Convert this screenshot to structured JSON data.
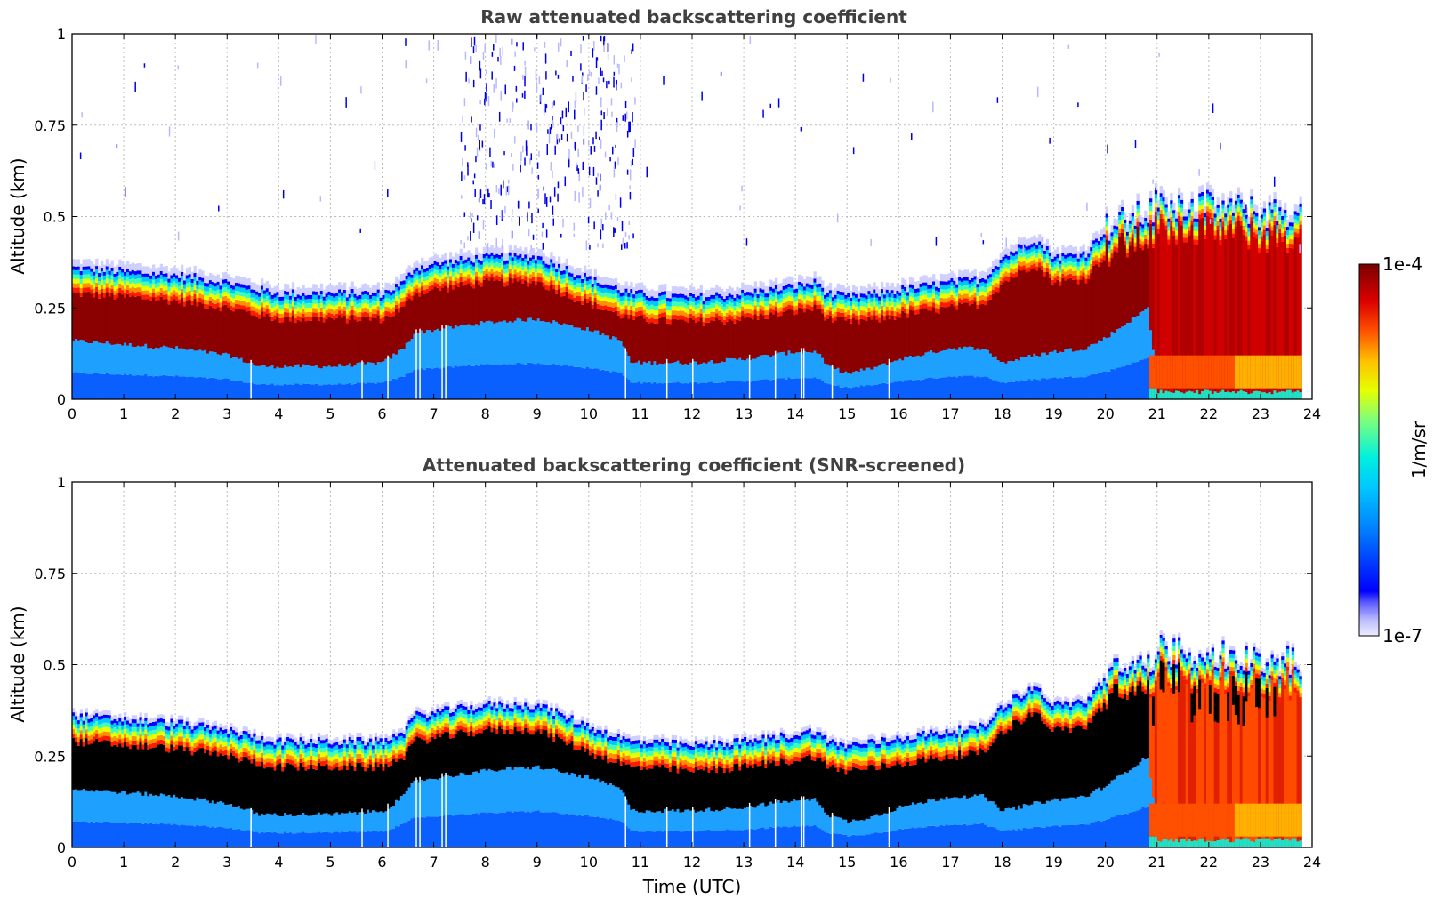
{
  "chart_data": [
    {
      "type": "heatmap",
      "title": "Raw attenuated backscattering coefficient",
      "xlabel": "",
      "ylabel": "Altitude (km)",
      "xlim": [
        0,
        24
      ],
      "ylim": [
        0,
        1
      ],
      "xticks": [
        "0",
        "1",
        "2",
        "3",
        "4",
        "5",
        "6",
        "7",
        "8",
        "9",
        "10",
        "11",
        "12",
        "13",
        "14",
        "15",
        "16",
        "17",
        "18",
        "19",
        "20",
        "21",
        "22",
        "23",
        "24"
      ],
      "yticks": [
        "0",
        "0.25",
        "0.5",
        "0.75",
        "1"
      ],
      "grid": true,
      "profile_hours": [
        0,
        1,
        2,
        3,
        3.6,
        4,
        5,
        6,
        6.4,
        6.6,
        7,
        8,
        9,
        10,
        10.6,
        10.8,
        12,
        13,
        14,
        14.4,
        14.6,
        15,
        15.6,
        16,
        17,
        17.6,
        18,
        18.6,
        19,
        19.6,
        20,
        20.8,
        21,
        22,
        23,
        23.8
      ],
      "aerosol_top_km": [
        0.37,
        0.36,
        0.35,
        0.33,
        0.31,
        0.3,
        0.3,
        0.3,
        0.33,
        0.37,
        0.38,
        0.4,
        0.4,
        0.34,
        0.31,
        0.3,
        0.29,
        0.3,
        0.32,
        0.33,
        0.3,
        0.29,
        0.3,
        0.31,
        0.33,
        0.34,
        0.4,
        0.45,
        0.4,
        0.41,
        0.48,
        0.52,
        0.55,
        0.54,
        0.52,
        0.52
      ],
      "dense_layer_bottom_km": [
        0.16,
        0.15,
        0.14,
        0.12,
        0.09,
        0.09,
        0.09,
        0.1,
        0.14,
        0.18,
        0.19,
        0.21,
        0.22,
        0.19,
        0.16,
        0.1,
        0.1,
        0.11,
        0.13,
        0.13,
        0.09,
        0.07,
        0.09,
        0.11,
        0.14,
        0.14,
        0.1,
        0.12,
        0.13,
        0.14,
        0.17,
        0.25,
        0.02,
        0.02,
        0.02,
        0.02
      ],
      "colorbar": {
        "min_label": "1e-7",
        "max_label": "1e-4",
        "label": "1/m/sr",
        "scale": "log"
      }
    },
    {
      "type": "heatmap",
      "title": "Attenuated backscattering coefficient (SNR-screened)",
      "xlabel": "Time (UTC)",
      "ylabel": "Altitude (km)",
      "xlim": [
        0,
        24
      ],
      "ylim": [
        0,
        1
      ],
      "xticks": [
        "0",
        "1",
        "2",
        "3",
        "4",
        "5",
        "6",
        "7",
        "8",
        "9",
        "10",
        "11",
        "12",
        "13",
        "14",
        "15",
        "16",
        "17",
        "18",
        "19",
        "20",
        "21",
        "22",
        "23",
        "24"
      ],
      "yticks": [
        "0",
        "0.25",
        "0.5",
        "0.75",
        "1"
      ],
      "grid": true,
      "screened_fill": "#000000"
    }
  ]
}
